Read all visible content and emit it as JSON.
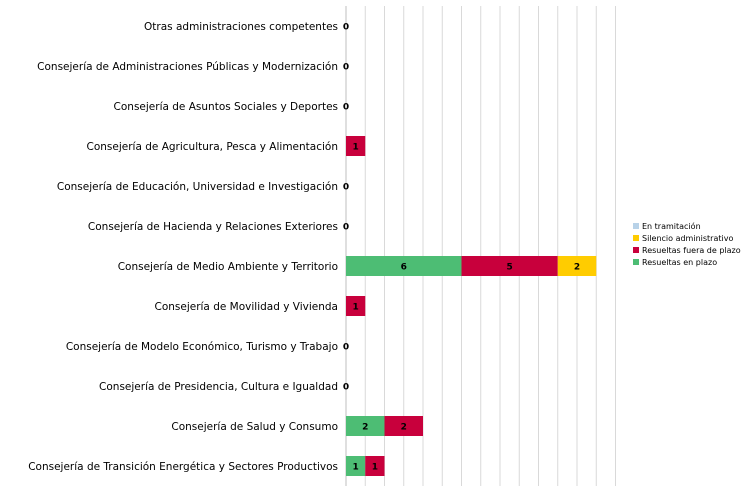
{
  "chart_data": {
    "type": "bar",
    "orientation": "horizontal",
    "stacked": true,
    "categories": [
      "Otras administraciones competentes",
      "Consejería de Administraciones Públicas y Modernización",
      "Consejería de Asuntos Sociales y Deportes",
      "Consejería de Agricultura, Pesca y  Alimentación",
      "Consejería de Educación, Universidad e Investigación",
      "Consejería de Hacienda y Relaciones Exteriores",
      "Consejería de Medio Ambiente y Territorio",
      "Consejería de Movilidad y Vivienda",
      "Consejería de Modelo Económico, Turismo y Trabajo",
      "Consejería de Presidencia, Cultura e Igualdad",
      "Consejería de Salud y Consumo",
      "Consejería de Transición Energética y Sectores Productivos"
    ],
    "series": [
      {
        "name": "Resueltas en plazo",
        "color": "#4DBD74",
        "values": [
          0,
          0,
          0,
          0,
          0,
          0,
          6,
          0,
          0,
          0,
          2,
          1
        ]
      },
      {
        "name": "Resueltas fuera de plazo",
        "color": "#C8003C",
        "values": [
          0,
          0,
          0,
          1,
          0,
          0,
          5,
          1,
          0,
          0,
          2,
          1
        ]
      },
      {
        "name": "Silencio administrativo",
        "color": "#FFCC00",
        "values": [
          0,
          0,
          0,
          0,
          0,
          0,
          2,
          0,
          0,
          0,
          0,
          0
        ]
      },
      {
        "name": "En tramitación",
        "color": "#B8D2E8",
        "values": [
          0,
          0,
          0,
          0,
          0,
          0,
          0,
          0,
          0,
          0,
          0,
          0
        ]
      }
    ],
    "totals": [
      0,
      0,
      0,
      1,
      0,
      0,
      13,
      1,
      0,
      0,
      4,
      2
    ],
    "xlim": [
      0,
      14
    ],
    "xgrid": true,
    "legend_position": "right",
    "legend_order": [
      "En tramitación",
      "Silencio administrativo",
      "Resueltas fuera de plazo",
      "Resueltas en plazo"
    ]
  }
}
